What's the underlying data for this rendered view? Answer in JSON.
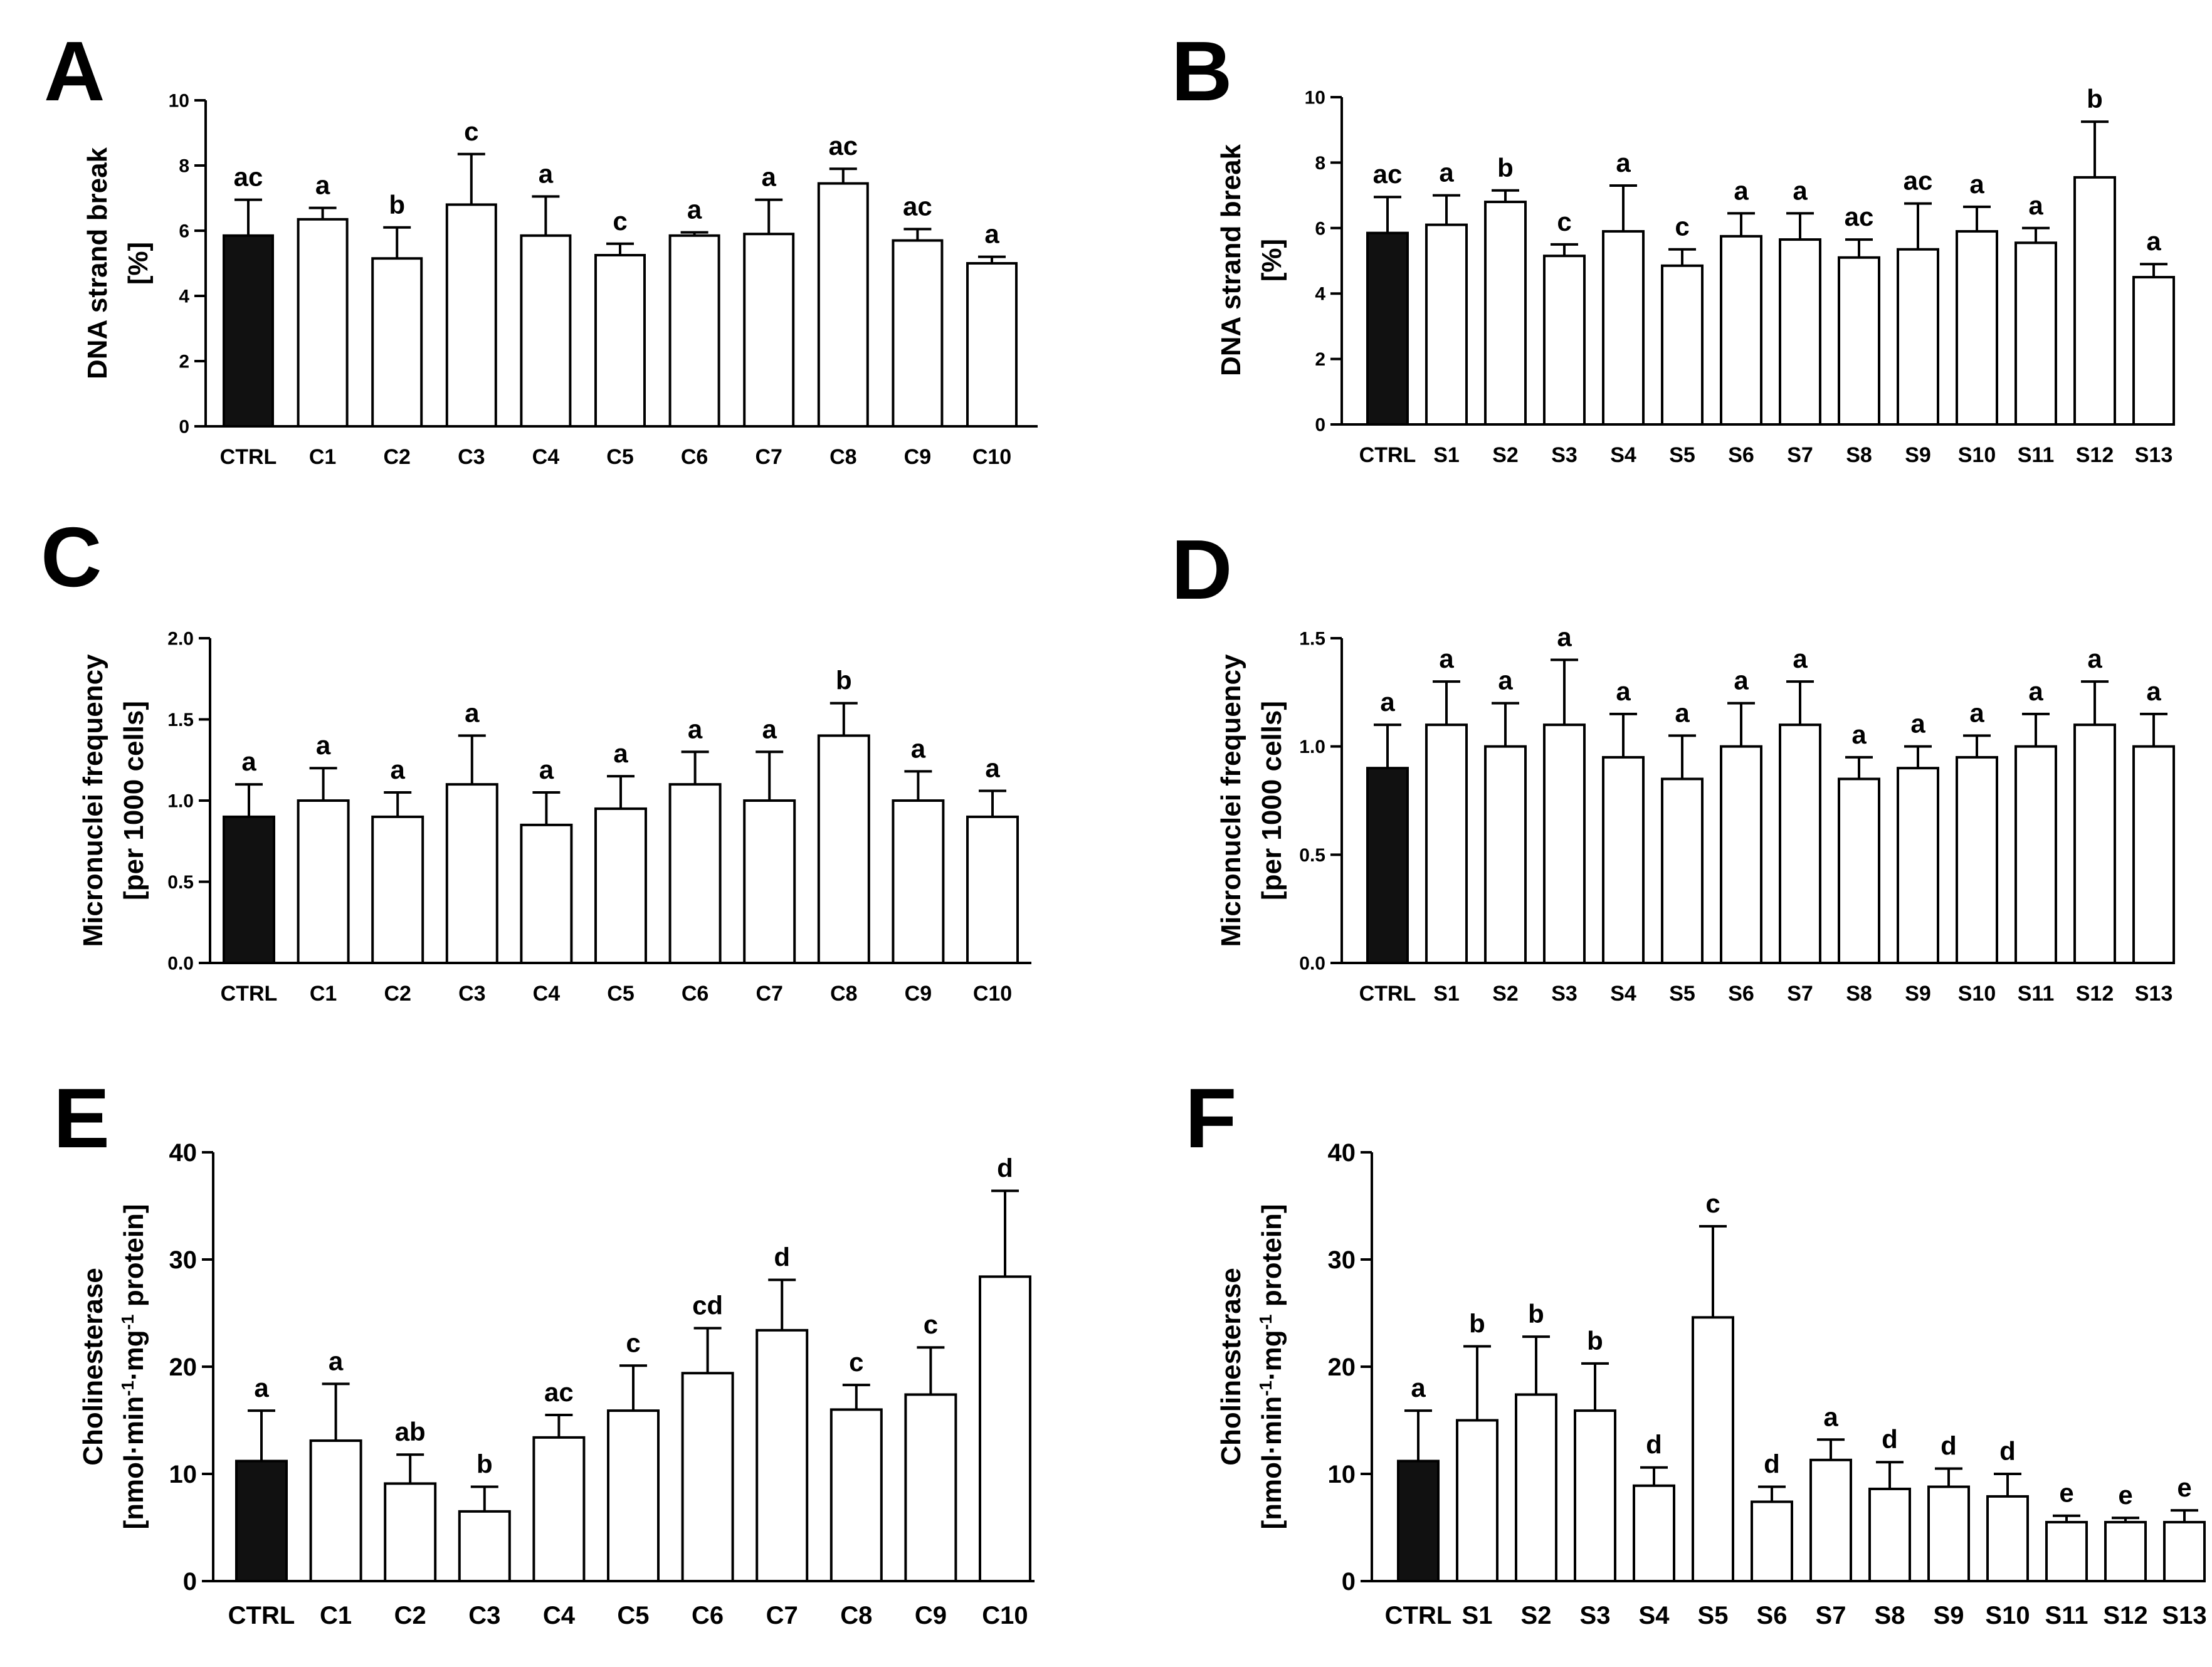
{
  "chart_data": [
    {
      "panel": "A",
      "type": "bar",
      "ylabel": [
        "DNA strand break",
        "[%]"
      ],
      "ylim": [
        0,
        10
      ],
      "yticks": [
        0,
        2,
        4,
        6,
        8,
        10
      ],
      "ytick_labels": [
        "0",
        "2",
        "4",
        "6",
        "8",
        "10"
      ],
      "categories": [
        "CTRL",
        "C1",
        "C2",
        "C3",
        "C4",
        "C5",
        "C6",
        "C7",
        "C8",
        "C9",
        "C10"
      ],
      "values": [
        5.85,
        6.35,
        5.15,
        6.8,
        5.85,
        5.25,
        5.85,
        5.9,
        7.45,
        5.7,
        5.0
      ],
      "errors": [
        1.1,
        0.35,
        0.95,
        1.55,
        1.2,
        0.35,
        0.1,
        1.05,
        0.45,
        0.35,
        0.2
      ],
      "labels": [
        "ac",
        "a",
        "b",
        "c",
        "a",
        "c",
        "a",
        "a",
        "ac",
        "ac",
        "a"
      ],
      "fills": [
        "#111111",
        "#ffffff",
        "#ffffff",
        "#ffffff",
        "#ffffff",
        "#ffffff",
        "#ffffff",
        "#ffffff",
        "#ffffff",
        "#ffffff",
        "#ffffff"
      ]
    },
    {
      "panel": "B",
      "type": "bar",
      "ylabel": [
        "DNA strand break",
        "[%]"
      ],
      "ylim": [
        0,
        10
      ],
      "yticks": [
        0,
        2,
        4,
        6,
        8,
        10
      ],
      "ytick_labels": [
        "0",
        "2",
        "4",
        "6",
        "8",
        "10"
      ],
      "categories": [
        "CTRL",
        "S1",
        "S2",
        "S3",
        "S4",
        "S5",
        "S6",
        "S7",
        "S8",
        "S9",
        "S10",
        "S11",
        "S12",
        "S13"
      ],
      "values": [
        5.85,
        6.1,
        6.8,
        5.15,
        5.9,
        4.85,
        5.75,
        5.65,
        5.1,
        5.35,
        5.9,
        5.55,
        7.55,
        4.5
      ],
      "errors": [
        1.1,
        0.9,
        0.35,
        0.35,
        1.4,
        0.5,
        0.7,
        0.8,
        0.55,
        1.4,
        0.75,
        0.45,
        1.7,
        0.4
      ],
      "labels": [
        "ac",
        "a",
        "b",
        "c",
        "a",
        "c",
        "a",
        "a",
        "ac",
        "ac",
        "a",
        "a",
        "b",
        "a"
      ],
      "fills": [
        "#111111",
        "#ffffff",
        "#ffffff",
        "#ffffff",
        "#ffffff",
        "#ffffff",
        "#ffffff",
        "#ffffff",
        "#ffffff",
        "#ffffff",
        "#ffffff",
        "#ffffff",
        "#ffffff",
        "#ffffff"
      ]
    },
    {
      "panel": "C",
      "type": "bar",
      "ylabel": [
        "Micronuclei frequency",
        "[per 1000 cells]"
      ],
      "ylim": [
        0,
        2
      ],
      "yticks": [
        0,
        0.5,
        1,
        1.5,
        2
      ],
      "ytick_labels": [
        "0.0",
        "0.5",
        "1.0",
        "1.5",
        "2.0"
      ],
      "categories": [
        "CTRL",
        "C1",
        "C2",
        "C3",
        "C4",
        "C5",
        "C6",
        "C7",
        "C8",
        "C9",
        "C10"
      ],
      "values": [
        0.9,
        1.0,
        0.9,
        1.1,
        0.85,
        0.95,
        1.1,
        1.0,
        1.4,
        1.0,
        0.9
      ],
      "errors": [
        0.2,
        0.2,
        0.15,
        0.3,
        0.2,
        0.2,
        0.2,
        0.3,
        0.2,
        0.18,
        0.16
      ],
      "labels": [
        "a",
        "a",
        "a",
        "a",
        "a",
        "a",
        "a",
        "a",
        "b",
        "a",
        "a"
      ],
      "fills": [
        "#111111",
        "#ffffff",
        "#ffffff",
        "#ffffff",
        "#ffffff",
        "#ffffff",
        "#ffffff",
        "#ffffff",
        "#ffffff",
        "#ffffff",
        "#ffffff"
      ]
    },
    {
      "panel": "D",
      "type": "bar",
      "ylabel": [
        "Micronuclei frequency",
        "[per 1000 cells]"
      ],
      "ylim": [
        0,
        1.5
      ],
      "yticks": [
        0,
        0.5,
        1,
        1.5
      ],
      "ytick_labels": [
        "0.0",
        "0.5",
        "1.0",
        "1.5"
      ],
      "categories": [
        "CTRL",
        "S1",
        "S2",
        "S3",
        "S4",
        "S5",
        "S6",
        "S7",
        "S8",
        "S9",
        "S10",
        "S11",
        "S12",
        "S13"
      ],
      "values": [
        0.9,
        1.1,
        1.0,
        1.1,
        0.95,
        0.85,
        1.0,
        1.1,
        0.85,
        0.9,
        0.95,
        1.0,
        1.1,
        1.0
      ],
      "errors": [
        0.2,
        0.2,
        0.2,
        0.3,
        0.2,
        0.2,
        0.2,
        0.2,
        0.1,
        0.1,
        0.1,
        0.15,
        0.2,
        0.15
      ],
      "labels": [
        "a",
        "a",
        "a",
        "a",
        "a",
        "a",
        "a",
        "a",
        "a",
        "a",
        "a",
        "a",
        "a",
        "a"
      ],
      "fills": [
        "#111111",
        "#ffffff",
        "#ffffff",
        "#ffffff",
        "#ffffff",
        "#ffffff",
        "#ffffff",
        "#ffffff",
        "#ffffff",
        "#ffffff",
        "#ffffff",
        "#ffffff",
        "#ffffff",
        "#ffffff"
      ]
    },
    {
      "panel": "E",
      "type": "bar",
      "ylabel": [
        "Cholinesterase",
        "[nmol·min⁻¹·mg⁻¹ protein]"
      ],
      "ylim": [
        0,
        40
      ],
      "yticks": [
        0,
        10,
        20,
        30,
        40
      ],
      "ytick_labels": [
        "0",
        "10",
        "20",
        "30",
        "40"
      ],
      "categories": [
        "CTRL",
        "C1",
        "C2",
        "C3",
        "C4",
        "C5",
        "C6",
        "C7",
        "C8",
        "C9",
        "C10"
      ],
      "values": [
        11.2,
        13.1,
        9.1,
        6.5,
        13.4,
        15.9,
        19.4,
        23.4,
        16.0,
        17.4,
        28.4
      ],
      "errors": [
        4.7,
        5.3,
        2.7,
        2.3,
        2.1,
        4.2,
        4.2,
        4.7,
        2.3,
        4.4,
        8.0
      ],
      "labels": [
        "a",
        "a",
        "ab",
        "b",
        "ac",
        "c",
        "cd",
        "d",
        "c",
        "c",
        "d"
      ],
      "fills": [
        "#111111",
        "#ffffff",
        "#ffffff",
        "#ffffff",
        "#ffffff",
        "#ffffff",
        "#ffffff",
        "#ffffff",
        "#ffffff",
        "#ffffff",
        "#ffffff"
      ]
    },
    {
      "panel": "F",
      "type": "bar",
      "ylabel": [
        "Cholinesterase",
        "[nmol·min⁻¹·mg⁻¹ protein]"
      ],
      "ylim": [
        0,
        40
      ],
      "yticks": [
        0,
        10,
        20,
        30,
        40
      ],
      "ytick_labels": [
        "0",
        "10",
        "20",
        "30",
        "40"
      ],
      "categories": [
        "CTRL",
        "S1",
        "S2",
        "S3",
        "S4",
        "S5",
        "S6",
        "S7",
        "S8",
        "S9",
        "S10",
        "S11",
        "S12",
        "S13"
      ],
      "values": [
        11.2,
        15.0,
        17.4,
        15.9,
        8.9,
        24.6,
        7.4,
        11.3,
        8.6,
        8.8,
        7.9,
        5.5,
        5.5,
        5.5
      ],
      "errors": [
        4.7,
        6.9,
        5.4,
        4.4,
        1.7,
        8.5,
        1.4,
        1.9,
        2.5,
        1.7,
        2.1,
        0.6,
        0.4,
        1.1
      ],
      "labels": [
        "a",
        "b",
        "b",
        "b",
        "d",
        "c",
        "d",
        "a",
        "d",
        "d",
        "d",
        "e",
        "e",
        "e"
      ],
      "fills": [
        "#111111",
        "#ffffff",
        "#ffffff",
        "#ffffff",
        "#ffffff",
        "#ffffff",
        "#ffffff",
        "#ffffff",
        "#ffffff",
        "#ffffff",
        "#ffffff",
        "#ffffff",
        "#ffffff",
        "#ffffff"
      ]
    }
  ]
}
